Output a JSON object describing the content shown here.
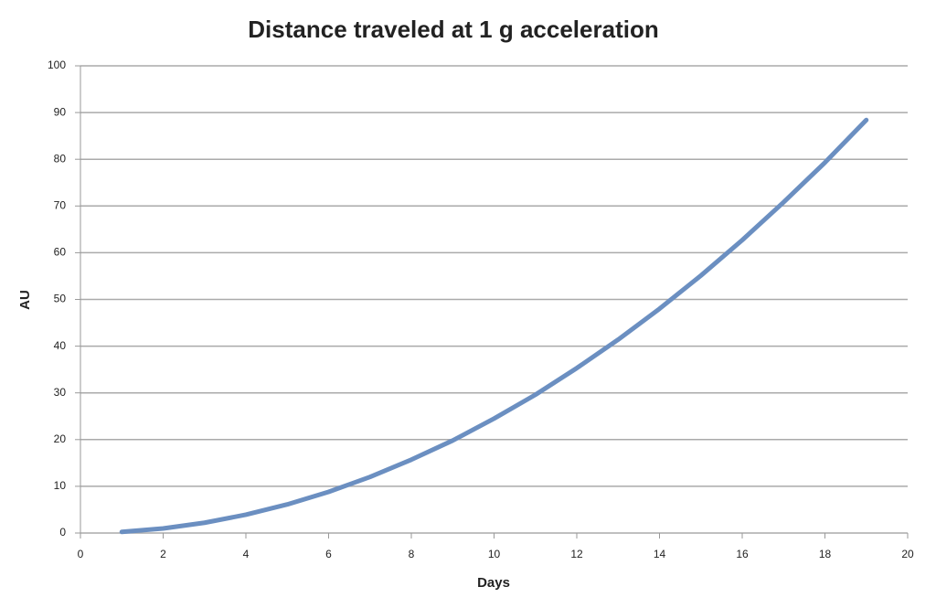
{
  "chart_data": {
    "type": "line",
    "title": "Distance traveled at 1 g acceleration",
    "x_label": "Days",
    "y_label": "AU",
    "x": [
      1,
      2,
      3,
      4,
      5,
      6,
      7,
      8,
      9,
      10,
      11,
      12,
      13,
      14,
      15,
      16,
      17,
      18,
      19
    ],
    "series": [
      {
        "name": "AU",
        "color": "#6b8fc1",
        "values": [
          0.24,
          0.98,
          2.2,
          3.92,
          6.12,
          8.81,
          12.0,
          15.7,
          19.8,
          24.5,
          29.6,
          35.3,
          41.4,
          48.0,
          55.1,
          62.7,
          70.8,
          79.3,
          88.4
        ]
      }
    ],
    "xlim": [
      0,
      20
    ],
    "xticks": [
      0,
      2,
      4,
      6,
      8,
      10,
      12,
      14,
      16,
      18,
      20
    ],
    "ylim": [
      0,
      100
    ],
    "yticks": [
      0,
      10,
      20,
      30,
      40,
      50,
      60,
      70,
      80,
      90,
      100
    ],
    "grid": true
  }
}
